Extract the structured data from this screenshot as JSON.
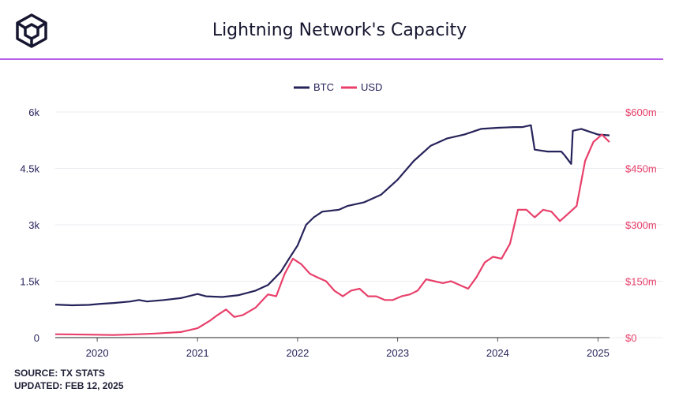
{
  "header": {
    "title": "Lightning Network's Capacity",
    "logo_icon": "cube-logo-icon"
  },
  "footer": {
    "source": "SOURCE: TX STATS",
    "updated": "UPDATED: FEB 12, 2025"
  },
  "colors": {
    "btc": "#26235a",
    "usd": "#e8406a",
    "accent_rule": "#b45ce8",
    "grid": "#ececf2",
    "left_axis_text": "#26235a",
    "right_axis_text": "#e8406a"
  },
  "chart_data": {
    "type": "line",
    "title": "Lightning Network's Capacity",
    "legend": {
      "placement": "top-center",
      "entries": [
        "BTC",
        "USD"
      ]
    },
    "grid": true,
    "x_range": [
      "2019-08-01",
      "2025-02-12"
    ],
    "x_ticks": [
      "2020",
      "2021",
      "2022",
      "2023",
      "2024",
      "2025"
    ],
    "left_axis": {
      "range": [
        0,
        6000
      ],
      "tick_labels": [
        "0",
        "1.5k",
        "3k",
        "4.5k",
        "6k"
      ]
    },
    "right_axis": {
      "range": [
        0,
        600
      ],
      "tick_labels": [
        "$0",
        "$150m",
        "$300m",
        "$450m",
        "$600m"
      ]
    },
    "series": [
      {
        "name": "BTC",
        "axis": "left",
        "points": [
          [
            "2019-08-01",
            880
          ],
          [
            "2019-10-01",
            860
          ],
          [
            "2019-12-01",
            870
          ],
          [
            "2020-01-15",
            900
          ],
          [
            "2020-03-01",
            920
          ],
          [
            "2020-05-01",
            960
          ],
          [
            "2020-06-01",
            1000
          ],
          [
            "2020-07-01",
            960
          ],
          [
            "2020-09-01",
            1000
          ],
          [
            "2020-11-01",
            1050
          ],
          [
            "2021-01-01",
            1160
          ],
          [
            "2021-02-01",
            1100
          ],
          [
            "2021-04-01",
            1080
          ],
          [
            "2021-06-01",
            1130
          ],
          [
            "2021-08-01",
            1250
          ],
          [
            "2021-09-15",
            1400
          ],
          [
            "2021-11-01",
            1750
          ],
          [
            "2021-12-01",
            2100
          ],
          [
            "2022-01-01",
            2450
          ],
          [
            "2022-02-01",
            3000
          ],
          [
            "2022-03-01",
            3200
          ],
          [
            "2022-04-01",
            3350
          ],
          [
            "2022-06-01",
            3400
          ],
          [
            "2022-07-01",
            3500
          ],
          [
            "2022-09-01",
            3600
          ],
          [
            "2022-11-01",
            3800
          ],
          [
            "2023-01-01",
            4200
          ],
          [
            "2023-03-01",
            4700
          ],
          [
            "2023-05-01",
            5100
          ],
          [
            "2023-07-01",
            5300
          ],
          [
            "2023-09-01",
            5400
          ],
          [
            "2023-11-01",
            5550
          ],
          [
            "2024-01-01",
            5580
          ],
          [
            "2024-03-01",
            5600
          ],
          [
            "2024-04-01",
            5600
          ],
          [
            "2024-05-01",
            5650
          ],
          [
            "2024-05-15",
            5000
          ],
          [
            "2024-07-01",
            4950
          ],
          [
            "2024-08-20",
            4950
          ],
          [
            "2024-09-01",
            4850
          ],
          [
            "2024-09-25",
            4620
          ],
          [
            "2024-10-01",
            5500
          ],
          [
            "2024-11-01",
            5550
          ],
          [
            "2025-01-01",
            5400
          ],
          [
            "2025-02-12",
            5380
          ]
        ]
      },
      {
        "name": "USD",
        "axis": "right",
        "points": [
          [
            "2019-08-01",
            9
          ],
          [
            "2019-12-01",
            8
          ],
          [
            "2020-03-01",
            7
          ],
          [
            "2020-06-01",
            9
          ],
          [
            "2020-08-01",
            11
          ],
          [
            "2020-11-01",
            15
          ],
          [
            "2021-01-01",
            25
          ],
          [
            "2021-02-15",
            45
          ],
          [
            "2021-03-15",
            60
          ],
          [
            "2021-04-15",
            75
          ],
          [
            "2021-05-15",
            55
          ],
          [
            "2021-06-15",
            60
          ],
          [
            "2021-08-01",
            80
          ],
          [
            "2021-09-15",
            115
          ],
          [
            "2021-10-15",
            110
          ],
          [
            "2021-11-15",
            170
          ],
          [
            "2021-12-15",
            210
          ],
          [
            "2022-01-15",
            195
          ],
          [
            "2022-02-15",
            170
          ],
          [
            "2022-03-15",
            160
          ],
          [
            "2022-04-15",
            150
          ],
          [
            "2022-05-15",
            125
          ],
          [
            "2022-06-15",
            110
          ],
          [
            "2022-07-15",
            125
          ],
          [
            "2022-08-15",
            130
          ],
          [
            "2022-09-15",
            110
          ],
          [
            "2022-10-15",
            110
          ],
          [
            "2022-11-15",
            100
          ],
          [
            "2022-12-15",
            100
          ],
          [
            "2023-01-15",
            110
          ],
          [
            "2023-02-15",
            115
          ],
          [
            "2023-03-15",
            125
          ],
          [
            "2023-04-15",
            155
          ],
          [
            "2023-05-15",
            150
          ],
          [
            "2023-06-15",
            145
          ],
          [
            "2023-07-15",
            150
          ],
          [
            "2023-08-15",
            140
          ],
          [
            "2023-09-15",
            130
          ],
          [
            "2023-10-15",
            160
          ],
          [
            "2023-11-15",
            200
          ],
          [
            "2023-12-15",
            215
          ],
          [
            "2024-01-15",
            210
          ],
          [
            "2024-02-15",
            250
          ],
          [
            "2024-03-15",
            340
          ],
          [
            "2024-04-15",
            340
          ],
          [
            "2024-05-15",
            320
          ],
          [
            "2024-06-15",
            340
          ],
          [
            "2024-07-15",
            335
          ],
          [
            "2024-08-15",
            310
          ],
          [
            "2024-09-15",
            330
          ],
          [
            "2024-10-15",
            350
          ],
          [
            "2024-11-15",
            470
          ],
          [
            "2024-12-15",
            520
          ],
          [
            "2025-01-15",
            540
          ],
          [
            "2025-02-12",
            520
          ]
        ]
      }
    ]
  }
}
